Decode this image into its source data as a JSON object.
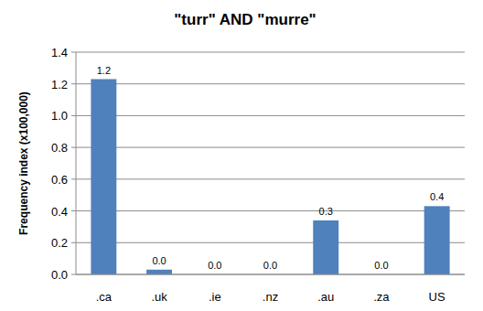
{
  "chart_data": {
    "type": "bar",
    "title": "\"turr\" AND \"murre\"",
    "y_label": "Frequency index (x100,000)",
    "categories": [
      ".ca",
      ".uk",
      ".ie",
      ".nz",
      ".au",
      ".za",
      "US"
    ],
    "values": [
      1.23,
      0.03,
      0,
      0,
      0.34,
      0,
      0.43
    ],
    "value_labels": [
      "1.2",
      "0.0",
      "0.0",
      "0.0",
      "0.3",
      "0.0",
      "0.4"
    ],
    "color": "#4f81bd",
    "ylim": [
      0,
      1.4
    ],
    "yticks": [
      {
        "value": 0,
        "label": "0.0"
      },
      0.2,
      0.4,
      0.6,
      0.8,
      {
        "value": 1,
        "label": "1.0"
      },
      1.2,
      1.4
    ],
    "grid": true,
    "data_labels": true
  }
}
